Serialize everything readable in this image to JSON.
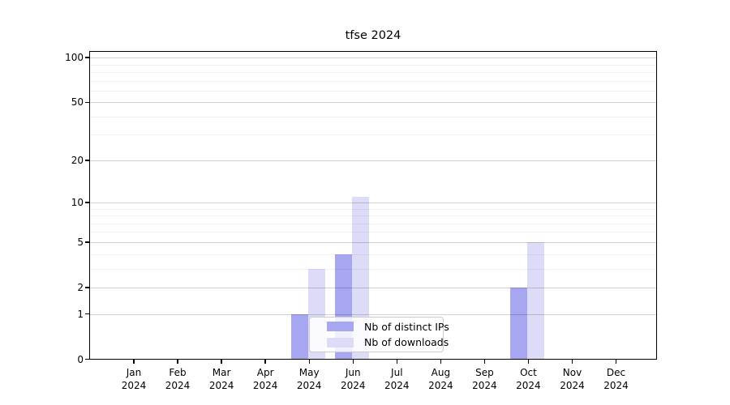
{
  "title": "tfse 2024",
  "legend": {
    "items": [
      {
        "label": "Nb of distinct IPs",
        "color": "#a6a6f1"
      },
      {
        "label": "Nb of downloads",
        "color": "#dcdcf8"
      }
    ]
  },
  "chart_data": {
    "type": "bar",
    "title": "tfse 2024",
    "categories": [
      "Jan 2024",
      "Feb 2024",
      "Mar 2024",
      "Apr 2024",
      "May 2024",
      "Jun 2024",
      "Jul 2024",
      "Aug 2024",
      "Sep 2024",
      "Oct 2024",
      "Nov 2024",
      "Dec 2024"
    ],
    "x_tick_months": [
      "Jan",
      "Feb",
      "Mar",
      "Apr",
      "May",
      "Jun",
      "Jul",
      "Aug",
      "Sep",
      "Oct",
      "Nov",
      "Dec"
    ],
    "x_tick_year": "2024",
    "series": [
      {
        "name": "Nb of distinct IPs",
        "color": "#a6a6f1",
        "values": [
          0,
          0,
          0,
          0,
          1,
          4,
          0,
          0,
          0,
          2,
          0,
          0
        ]
      },
      {
        "name": "Nb of downloads",
        "color": "#dcdcf8",
        "values": [
          0,
          0,
          0,
          0,
          3,
          11,
          0,
          0,
          0,
          5,
          0,
          0
        ]
      }
    ],
    "xlabel": "",
    "ylabel": "",
    "y_scale": "log10(1+v)",
    "y_major_ticks": [
      0,
      1,
      2,
      5,
      10,
      20,
      50,
      100
    ],
    "y_minor_gridlines": [
      3,
      4,
      6,
      7,
      8,
      9,
      30,
      40,
      60,
      70,
      80,
      90
    ],
    "ylim": [
      0,
      111
    ],
    "grid": true,
    "legend_position": "lower center"
  }
}
